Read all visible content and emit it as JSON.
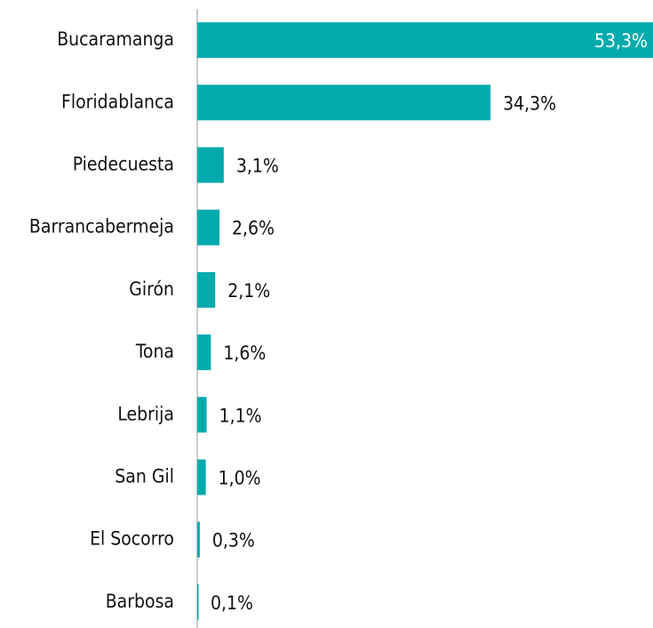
{
  "chart_data": {
    "type": "bar",
    "orientation": "horizontal",
    "categories": [
      "Bucaramanga",
      "Floridablanca",
      "Piedecuesta",
      "Barrancabermeja",
      "Girón",
      "Tona",
      "Lebrija",
      "San Gil",
      "El Socorro",
      "Barbosa"
    ],
    "values": [
      53.3,
      34.3,
      3.1,
      2.6,
      2.1,
      1.6,
      1.1,
      1.0,
      0.3,
      0.1
    ],
    "value_labels": [
      "53,3%",
      "34,3%",
      "3,1%",
      "2,6%",
      "2,1%",
      "1,6%",
      "1,1%",
      "1,0%",
      "0,3%",
      "0,1%"
    ],
    "color": "#00aaad",
    "xlim": [
      0,
      53.3
    ]
  }
}
